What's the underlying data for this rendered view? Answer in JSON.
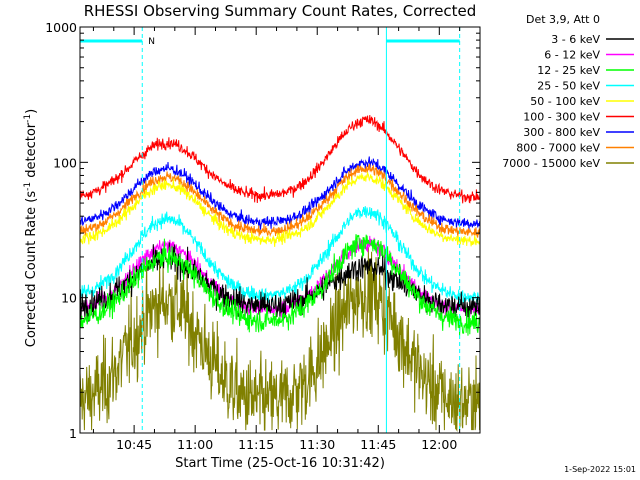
{
  "chart_data": {
    "type": "line",
    "title": "RHESSI Observing Summary Count Rates, Corrected",
    "xlabel": "Start Time (25-Oct-16 10:31:42)",
    "ylabel_main": "Corrected Count Rate (s",
    "ylabel_sup1": "-1",
    "ylabel_mid": " detector",
    "ylabel_sup2": "-1",
    "ylabel_end": ")",
    "y_scale": "log",
    "ylim": [
      1,
      1000
    ],
    "xlim": [
      "10:31:42",
      "12:10:00"
    ],
    "x_ticks": [
      "10:45",
      "11:00",
      "11:15",
      "11:30",
      "11:45",
      "12:00"
    ],
    "y_ticks": [
      "1",
      "10",
      "100",
      "1000"
    ],
    "legend_header": "Det 3,9, Att 0",
    "legend_position": "right, outside plot",
    "timestamp": "1-Sep-2022 15:01",
    "annotation_N": "N",
    "night_intervals": [
      [
        "10:31:42",
        "10:47:00"
      ],
      [
        "11:47:00",
        "12:05:00"
      ]
    ],
    "sunlight_markers": [
      "10:47:00",
      "11:47:00",
      "12:05:00"
    ],
    "peak_times": [
      "10:53",
      "11:42"
    ],
    "series": [
      {
        "name": "3 - 6 keV",
        "color": "#000000",
        "base": 8.5,
        "peak1": 19,
        "peak2": 17,
        "noise": 0.07
      },
      {
        "name": "6 - 12 keV",
        "color": "#ff00ff",
        "base": 8.0,
        "peak1": 24,
        "peak2": 25,
        "noise": 0.04
      },
      {
        "name": "12 - 25 keV",
        "color": "#00ff00",
        "base": 6.5,
        "peak1": 20,
        "peak2": 26,
        "noise": 0.06
      },
      {
        "name": "25 - 50 keV",
        "color": "#00ffff",
        "base": 10,
        "peak1": 38,
        "peak2": 44,
        "noise": 0.04
      },
      {
        "name": "50 - 100 keV",
        "color": "#ffff00",
        "base": 26,
        "peak1": 68,
        "peak2": 78,
        "noise": 0.03
      },
      {
        "name": "100 - 300 keV",
        "color": "#ff0000",
        "base": 55,
        "peak1": 140,
        "peak2": 205,
        "noise": 0.03
      },
      {
        "name": "300 - 800 keV",
        "color": "#0000ff",
        "base": 35,
        "peak1": 90,
        "peak2": 100,
        "noise": 0.03
      },
      {
        "name": "800 - 7000 keV",
        "color": "#ff8000",
        "base": 30,
        "peak1": 78,
        "peak2": 90,
        "noise": 0.03
      },
      {
        "name": "7000 - 15000 keV",
        "color": "#808000",
        "base": 1.6,
        "peak1": 9.5,
        "peak2": 11,
        "noise": 0.22
      }
    ]
  }
}
